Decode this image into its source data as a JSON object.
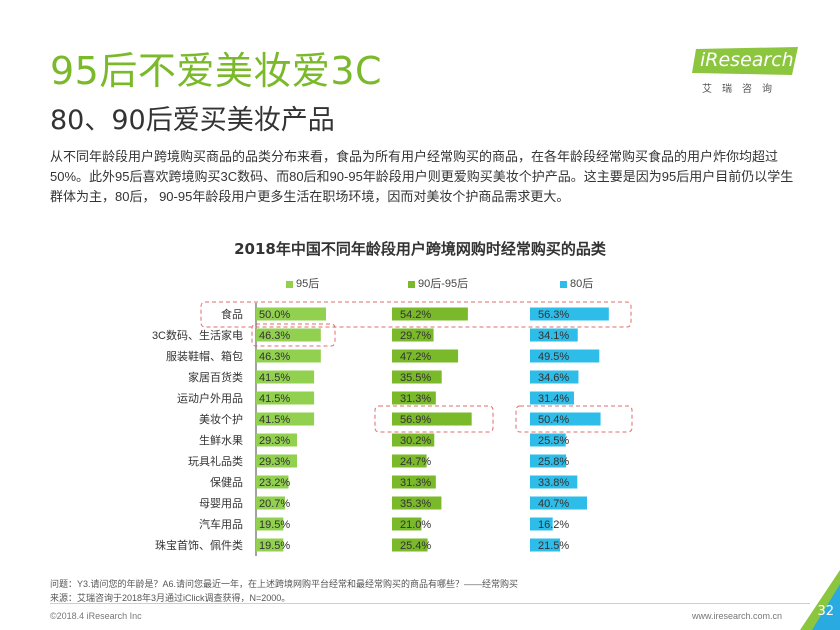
{
  "header": {
    "title": "95后不爱美妆爱3C",
    "subtitle": "80、90后爱买美妆产品",
    "logo_text": "iResearch",
    "logo_sub": "艾瑞咨询"
  },
  "paragraph": "从不同年龄段用户跨境购买商品的品类分布来看，食品为所有用户经常购买的商品，在各年龄段经常购买食品的用户炸你均超过50%。此外95后喜欢跨境购买3C数码、而80后和90-95年龄段用户则更爱购买美妆个护产品。这主要是因为95后用户目前仍以学生群体为主，80后， 90-95年龄段用户更多生活在职场环境，因而对美妆个护商品需求更大。",
  "chart_data": {
    "type": "bar",
    "orientation": "horizontal",
    "title": "2018年中国不同年龄段用户跨境网购时经常购买的品类",
    "categories": [
      "食品",
      "3C数码、生活家电",
      "服装鞋帽、箱包",
      "家居百货类",
      "运动户外用品",
      "美妆个护",
      "生鲜水果",
      "玩具礼品类",
      "保健品",
      "母婴用品",
      "汽车用品",
      "珠宝首饰、佩件类"
    ],
    "series": [
      {
        "name": "95后",
        "color": "#92d050",
        "values": [
          50.0,
          46.3,
          46.3,
          41.5,
          41.5,
          41.5,
          29.3,
          29.3,
          23.2,
          20.7,
          19.5,
          19.5
        ]
      },
      {
        "name": "90后-95后",
        "color": "#7ab929",
        "values": [
          54.2,
          29.7,
          47.2,
          35.5,
          31.3,
          56.9,
          30.2,
          24.7,
          31.3,
          35.3,
          21.0,
          25.4
        ]
      },
      {
        "name": "80后",
        "color": "#2ebce8",
        "values": [
          56.3,
          34.1,
          49.5,
          34.6,
          31.4,
          50.4,
          25.5,
          25.8,
          33.8,
          40.7,
          16.2,
          21.5
        ]
      }
    ],
    "value_labels": [
      [
        "50.0%",
        "46.3%",
        "46.3%",
        "41.5%",
        "41.5%",
        "41.5%",
        "29.3%",
        "29.3%",
        "23.2%",
        "20.7%",
        "19.5%",
        "19.5%"
      ],
      [
        "54.2%",
        "29.7%",
        "47.2%",
        "35.5%",
        "31.3%",
        "56.9%",
        "30.2%",
        "24.7%",
        "31.3%",
        "35.3%",
        "21.0%",
        "25.4%"
      ],
      [
        "56.3%",
        "34.1%",
        "49.5%",
        "34.6%",
        "31.4%",
        "50.4%",
        "25.5%",
        "25.8%",
        "33.8%",
        "40.7%",
        "16.2%",
        "21.5%"
      ]
    ],
    "xlim": [
      0,
      60
    ],
    "legend_position": "top",
    "highlights": [
      "食品 row across all groups",
      "95后 3C数码、生活家电",
      "90后-95后 美妆个护",
      "80后 美妆个护"
    ]
  },
  "footnotes": {
    "question": "问题：Y3.请问您的年龄是？A6.请问您最近一年，在上述跨境网购平台经常和最经常购买的商品有哪些？——经常购买",
    "source": "来源：艾瑞咨询于2018年3月通过iClick调查获得，N=2000。"
  },
  "footer": {
    "copyright": "©2018.4 iResearch Inc",
    "url": "www.iresearch.com.cn",
    "page_number": "32"
  },
  "colors": {
    "accent_green": "#7ab929",
    "light_green": "#92d050",
    "blue": "#2ebce8",
    "highlight_red": "#e26b6b"
  }
}
